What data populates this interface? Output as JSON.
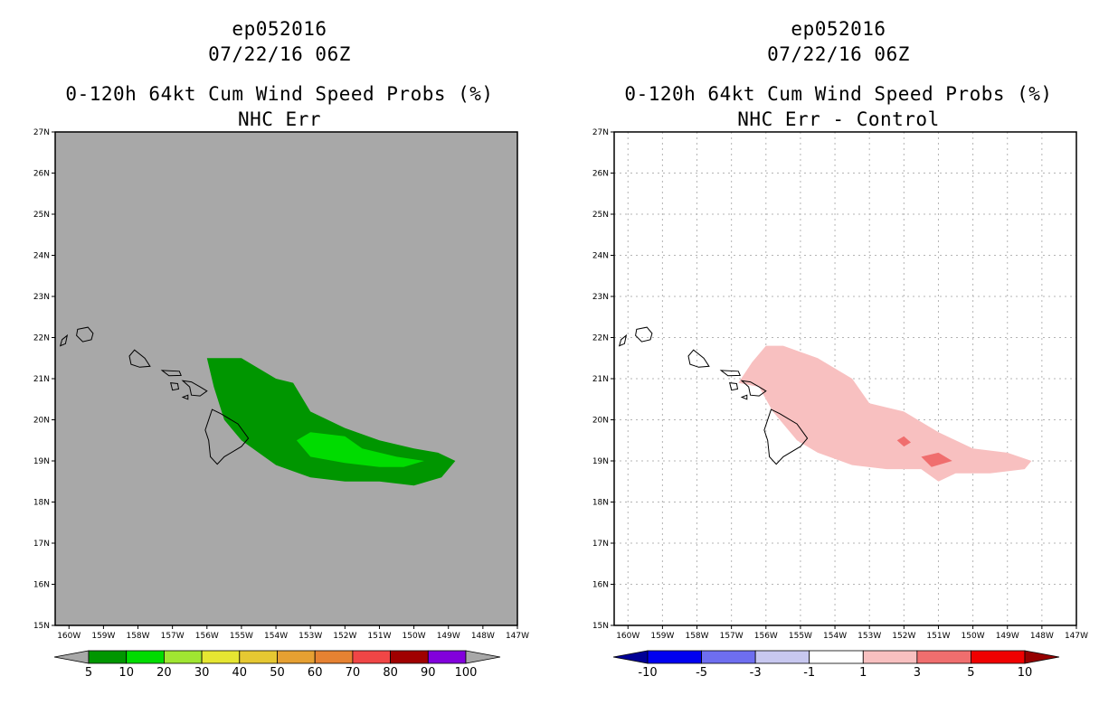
{
  "chart_data": [
    {
      "type": "map-contour",
      "storm_id": "ep052016",
      "valid_time": "07/22/16 06Z",
      "title": "0-120h 64kt Cum Wind Speed Probs (%)",
      "subtitle": "NHC Err",
      "background_color": "#a8a8a8",
      "lon_ticks": [
        "160W",
        "159W",
        "158W",
        "157W",
        "156W",
        "155W",
        "154W",
        "153W",
        "152W",
        "151W",
        "150W",
        "149W",
        "148W",
        "147W"
      ],
      "lat_ticks": [
        "15N",
        "16N",
        "17N",
        "18N",
        "19N",
        "20N",
        "21N",
        "22N",
        "23N",
        "24N",
        "25N",
        "26N",
        "27N"
      ],
      "xlim": [
        -160.4,
        -147
      ],
      "ylim": [
        15,
        27
      ],
      "grid": false,
      "legend": {
        "labels": [
          "5",
          "10",
          "20",
          "30",
          "40",
          "50",
          "60",
          "70",
          "80",
          "90",
          "100"
        ],
        "colors": [
          "#a8a8a8",
          "#009600",
          "#00dc00",
          "#a0e632",
          "#e6e632",
          "#e6c832",
          "#e6a032",
          "#e68232",
          "#f04646",
          "#a00000",
          "#8200dc",
          "#a8a8a8"
        ]
      },
      "regions": [
        {
          "level": "5-10",
          "color": "#009600",
          "polygon": [
            [
              -156.0,
              21.5
            ],
            [
              -155.0,
              21.5
            ],
            [
              -154.0,
              21.0
            ],
            [
              -153.5,
              20.9
            ],
            [
              -153.0,
              20.2
            ],
            [
              -152.0,
              19.8
            ],
            [
              -151.0,
              19.5
            ],
            [
              -150.0,
              19.3
            ],
            [
              -149.3,
              19.2
            ],
            [
              -148.8,
              19.0
            ],
            [
              -149.2,
              18.6
            ],
            [
              -150.0,
              18.4
            ],
            [
              -151.0,
              18.5
            ],
            [
              -152.0,
              18.5
            ],
            [
              -153.0,
              18.6
            ],
            [
              -154.0,
              18.9
            ],
            [
              -155.0,
              19.5
            ],
            [
              -155.5,
              20.0
            ],
            [
              -155.8,
              20.8
            ],
            [
              -156.0,
              21.5
            ]
          ]
        },
        {
          "level": "10-20",
          "color": "#00dc00",
          "polygon": [
            [
              -153.4,
              19.5
            ],
            [
              -153.0,
              19.7
            ],
            [
              -152.0,
              19.6
            ],
            [
              -151.5,
              19.3
            ],
            [
              -150.5,
              19.1
            ],
            [
              -149.7,
              19.0
            ],
            [
              -150.3,
              18.85
            ],
            [
              -151.0,
              18.85
            ],
            [
              -152.0,
              18.95
            ],
            [
              -153.0,
              19.1
            ],
            [
              -153.4,
              19.5
            ]
          ]
        }
      ]
    },
    {
      "type": "map-contour",
      "storm_id": "ep052016",
      "valid_time": "07/22/16 06Z",
      "title": "0-120h 64kt Cum Wind Speed Probs (%)",
      "subtitle": "NHC Err - Control",
      "background_color": "#ffffff",
      "lon_ticks": [
        "160W",
        "159W",
        "158W",
        "157W",
        "156W",
        "155W",
        "154W",
        "153W",
        "152W",
        "151W",
        "150W",
        "149W",
        "148W",
        "147W"
      ],
      "lat_ticks": [
        "15N",
        "16N",
        "17N",
        "18N",
        "19N",
        "20N",
        "21N",
        "22N",
        "23N",
        "24N",
        "25N",
        "26N",
        "27N"
      ],
      "xlim": [
        -160.4,
        -147
      ],
      "ylim": [
        15,
        27
      ],
      "grid": true,
      "legend": {
        "labels": [
          "-10",
          "-5",
          "-3",
          "-1",
          "1",
          "3",
          "5",
          "10"
        ],
        "colors": [
          "#000096",
          "#0000f0",
          "#6e6ef0",
          "#c8c8f0",
          "#ffffff",
          "#f8c0c0",
          "#f06e6e",
          "#f00000",
          "#960000"
        ]
      },
      "regions": [
        {
          "level": "1-3",
          "color": "#f8c0c0",
          "polygon": [
            [
              -156.8,
              20.9
            ],
            [
              -156.4,
              21.4
            ],
            [
              -156.0,
              21.8
            ],
            [
              -155.5,
              21.8
            ],
            [
              -154.5,
              21.5
            ],
            [
              -153.5,
              21.0
            ],
            [
              -153.0,
              20.4
            ],
            [
              -152.0,
              20.2
            ],
            [
              -151.0,
              19.7
            ],
            [
              -150.0,
              19.3
            ],
            [
              -149.0,
              19.2
            ],
            [
              -148.3,
              19.0
            ],
            [
              -148.5,
              18.8
            ],
            [
              -149.5,
              18.7
            ],
            [
              -150.5,
              18.7
            ],
            [
              -151.0,
              18.5
            ],
            [
              -151.5,
              18.8
            ],
            [
              -152.5,
              18.8
            ],
            [
              -153.5,
              18.9
            ],
            [
              -154.5,
              19.2
            ],
            [
              -155.1,
              19.5
            ],
            [
              -155.8,
              20.2
            ],
            [
              -156.2,
              20.8
            ],
            [
              -156.8,
              20.9
            ]
          ]
        },
        {
          "level": "3-5",
          "color": "#f06e6e",
          "polygon": [
            [
              -152.2,
              19.5
            ],
            [
              -152.0,
              19.6
            ],
            [
              -151.8,
              19.45
            ],
            [
              -152.0,
              19.35
            ],
            [
              -152.2,
              19.5
            ]
          ]
        },
        {
          "level": "3-5",
          "color": "#f06e6e",
          "polygon": [
            [
              -151.5,
              19.1
            ],
            [
              -151.0,
              19.2
            ],
            [
              -150.6,
              19.0
            ],
            [
              -151.2,
              18.85
            ],
            [
              -151.5,
              19.1
            ]
          ]
        }
      ]
    }
  ],
  "coastlines": [
    [
      [
        -159.75,
        22.2
      ],
      [
        -159.45,
        22.25
      ],
      [
        -159.3,
        22.1
      ],
      [
        -159.35,
        21.95
      ],
      [
        -159.6,
        21.9
      ],
      [
        -159.78,
        22.05
      ],
      [
        -159.75,
        22.2
      ]
    ],
    [
      [
        -160.2,
        21.95
      ],
      [
        -160.05,
        22.05
      ],
      [
        -160.1,
        21.85
      ],
      [
        -160.25,
        21.8
      ],
      [
        -160.2,
        21.95
      ]
    ],
    [
      [
        -158.25,
        21.55
      ],
      [
        -158.1,
        21.7
      ],
      [
        -157.8,
        21.5
      ],
      [
        -157.65,
        21.3
      ],
      [
        -157.95,
        21.28
      ],
      [
        -158.2,
        21.35
      ],
      [
        -158.25,
        21.55
      ]
    ],
    [
      [
        -157.3,
        21.2
      ],
      [
        -156.8,
        21.18
      ],
      [
        -156.75,
        21.08
      ],
      [
        -157.1,
        21.07
      ],
      [
        -157.3,
        21.2
      ]
    ],
    [
      [
        -156.7,
        20.95
      ],
      [
        -156.45,
        20.92
      ],
      [
        -156.2,
        20.8
      ],
      [
        -156.0,
        20.7
      ],
      [
        -156.2,
        20.58
      ],
      [
        -156.45,
        20.6
      ],
      [
        -156.5,
        20.8
      ],
      [
        -156.7,
        20.95
      ]
    ],
    [
      [
        -157.05,
        20.9
      ],
      [
        -156.85,
        20.88
      ],
      [
        -156.82,
        20.75
      ],
      [
        -157.0,
        20.72
      ],
      [
        -157.05,
        20.9
      ]
    ],
    [
      [
        -156.7,
        20.55
      ],
      [
        -156.55,
        20.6
      ],
      [
        -156.55,
        20.5
      ],
      [
        -156.7,
        20.55
      ]
    ],
    [
      [
        -155.85,
        20.25
      ],
      [
        -155.6,
        20.15
      ],
      [
        -155.1,
        19.9
      ],
      [
        -154.8,
        19.55
      ],
      [
        -155.0,
        19.35
      ],
      [
        -155.5,
        19.1
      ],
      [
        -155.7,
        18.92
      ],
      [
        -155.9,
        19.1
      ],
      [
        -155.95,
        19.5
      ],
      [
        -156.05,
        19.75
      ],
      [
        -155.85,
        20.25
      ]
    ]
  ]
}
